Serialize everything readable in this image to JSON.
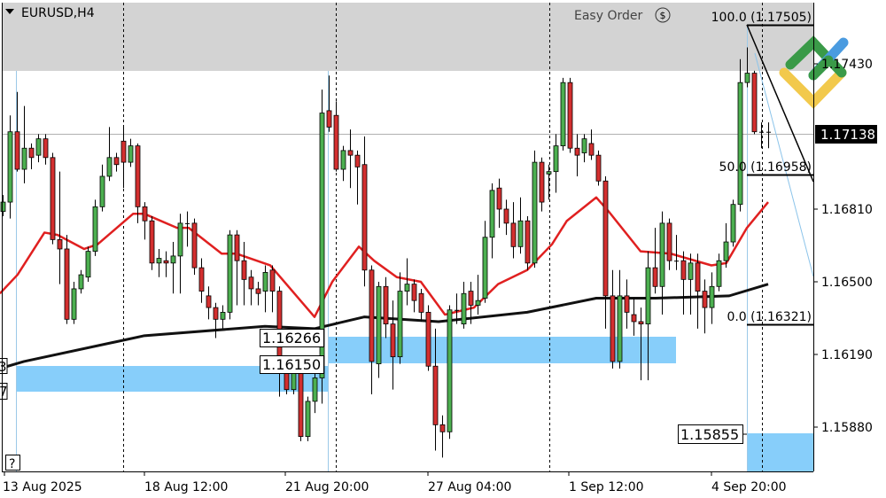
{
  "chart_header": {
    "symbol_label": "EURUSD,H4",
    "menu_icon": "triangle-down-icon"
  },
  "price_axis": {
    "ticks": [
      "1.17430",
      "1.16810",
      "1.16500",
      "1.16190",
      "1.15880"
    ],
    "tick_values": [
      1.1743,
      1.1681,
      1.165,
      1.1619,
      1.1588
    ],
    "current_price": "1.17138",
    "current_price_value": 1.17138
  },
  "time_axis": {
    "labels": [
      "13 Aug 2025",
      "18 Aug 12:00",
      "21 Aug 20:00",
      "27 Aug 04:00",
      "1 Sep 12:00",
      "4 Sep 20:00"
    ]
  },
  "levels": {
    "level_a": "1.16266",
    "level_b": "1.16150",
    "level_c": "1.15855",
    "left_cut_a": "3",
    "left_cut_b": "7"
  },
  "fibonacci": {
    "f100": "100.0 (1.17505)",
    "f50": "50.0 (1.16958)",
    "f0": "0.0 (1.16321)",
    "p100": 1.17505,
    "p50": 1.16958,
    "p0": 1.16321
  },
  "easy_order": {
    "label": "Easy Order",
    "icon": "dollar-circle-icon"
  },
  "help_button": "?",
  "colors": {
    "bull": "#4caf50",
    "bear": "#d32f2f",
    "ma_fast": "#e02020",
    "ma_slow": "#111111",
    "zone": "#87cefa",
    "gray_zone": "#d3d3d3"
  },
  "chart_data": {
    "type": "candlestick",
    "ohlc": [
      [
        1.168,
        1.1687,
        1.1678,
        1.1684
      ],
      [
        1.1684,
        1.1721,
        1.1677,
        1.1714
      ],
      [
        1.1714,
        1.1731,
        1.1697,
        1.1698
      ],
      [
        1.1698,
        1.1725,
        1.1692,
        1.1707
      ],
      [
        1.1707,
        1.1709,
        1.1698,
        1.1703
      ],
      [
        1.1704,
        1.1713,
        1.1701,
        1.1711
      ],
      [
        1.1711,
        1.1713,
        1.17,
        1.1703
      ],
      [
        1.1703,
        1.1705,
        1.1666,
        1.1668
      ],
      [
        1.1668,
        1.1697,
        1.1649,
        1.1664
      ],
      [
        1.1664,
        1.167,
        1.1632,
        1.1634
      ],
      [
        1.1634,
        1.165,
        1.1632,
        1.1647
      ],
      [
        1.1647,
        1.1655,
        1.1645,
        1.1653
      ],
      [
        1.1652,
        1.1665,
        1.165,
        1.1663
      ],
      [
        1.1663,
        1.1685,
        1.1661,
        1.1682
      ],
      [
        1.1682,
        1.17,
        1.168,
        1.1695
      ],
      [
        1.1695,
        1.1716,
        1.1693,
        1.1703
      ],
      [
        1.1703,
        1.1705,
        1.1697,
        1.17
      ],
      [
        1.171,
        1.1716,
        1.169,
        1.1701
      ],
      [
        1.1701,
        1.1711,
        1.1699,
        1.1708
      ],
      [
        1.1708,
        1.1709,
        1.1675,
        1.1682
      ],
      [
        1.1682,
        1.1684,
        1.1668,
        1.1676
      ],
      [
        1.1676,
        1.1678,
        1.1655,
        1.1658
      ],
      [
        1.1658,
        1.1664,
        1.1652,
        1.166
      ],
      [
        1.1659,
        1.1663,
        1.1652,
        1.1658
      ],
      [
        1.1658,
        1.1667,
        1.1645,
        1.1661
      ],
      [
        1.1661,
        1.1679,
        1.1645,
        1.1675
      ],
      [
        1.1675,
        1.168,
        1.1665,
        1.1675
      ],
      [
        1.1675,
        1.1677,
        1.1653,
        1.1656
      ],
      [
        1.1656,
        1.166,
        1.1641,
        1.1646
      ],
      [
        1.1644,
        1.1648,
        1.1634,
        1.1639
      ],
      [
        1.1639,
        1.1641,
        1.1626,
        1.1634
      ],
      [
        1.1634,
        1.164,
        1.163,
        1.1637
      ],
      [
        1.1637,
        1.1672,
        1.1634,
        1.167
      ],
      [
        1.167,
        1.1672,
        1.164,
        1.1659
      ],
      [
        1.1659,
        1.1667,
        1.164,
        1.1651
      ],
      [
        1.1652,
        1.1655,
        1.164,
        1.1647
      ],
      [
        1.1647,
        1.165,
        1.164,
        1.1645
      ],
      [
        1.1646,
        1.1657,
        1.1637,
        1.1654
      ],
      [
        1.1655,
        1.1657,
        1.1637,
        1.1646
      ],
      [
        1.1646,
        1.1648,
        1.1601,
        1.1612
      ],
      [
        1.1612,
        1.1616,
        1.1602,
        1.1604
      ],
      [
        1.1604,
        1.1617,
        1.1602,
        1.1615
      ],
      [
        1.1615,
        1.1617,
        1.1582,
        1.1584
      ],
      [
        1.1584,
        1.1601,
        1.1582,
        1.1599
      ],
      [
        1.1599,
        1.1611,
        1.1594,
        1.1609
      ],
      [
        1.1609,
        1.1732,
        1.1598,
        1.1722
      ],
      [
        1.1723,
        1.1738,
        1.1714,
        1.1716
      ],
      [
        1.1721,
        1.1727,
        1.1697,
        1.1698
      ],
      [
        1.1698,
        1.1708,
        1.1693,
        1.1706
      ],
      [
        1.1706,
        1.1715,
        1.169,
        1.1704
      ],
      [
        1.1704,
        1.1706,
        1.1683,
        1.1699
      ],
      [
        1.17,
        1.1712,
        1.1648,
        1.1655
      ],
      [
        1.1655,
        1.1657,
        1.1602,
        1.1616
      ],
      [
        1.1615,
        1.165,
        1.1609,
        1.1648
      ],
      [
        1.1648,
        1.1652,
        1.1626,
        1.1632
      ],
      [
        1.1632,
        1.1642,
        1.1604,
        1.1618
      ],
      [
        1.1618,
        1.1654,
        1.1615,
        1.1646
      ],
      [
        1.1646,
        1.166,
        1.164,
        1.1649
      ],
      [
        1.1649,
        1.1651,
        1.1637,
        1.1642
      ],
      [
        1.1645,
        1.1647,
        1.1633,
        1.1637
      ],
      [
        1.1637,
        1.164,
        1.1612,
        1.1614
      ],
      [
        1.1614,
        1.163,
        1.1578,
        1.1589
      ],
      [
        1.1589,
        1.1593,
        1.1575,
        1.1586
      ],
      [
        1.1586,
        1.164,
        1.1583,
        1.1638
      ],
      [
        1.1638,
        1.1645,
        1.1632,
        1.1638
      ],
      [
        1.1632,
        1.165,
        1.163,
        1.1645
      ],
      [
        1.1646,
        1.165,
        1.1632,
        1.164
      ],
      [
        1.164,
        1.1653,
        1.1636,
        1.1642
      ],
      [
        1.1643,
        1.1676,
        1.1641,
        1.1669
      ],
      [
        1.1669,
        1.1692,
        1.166,
        1.1689
      ],
      [
        1.169,
        1.1694,
        1.1673,
        1.1681
      ],
      [
        1.1681,
        1.1685,
        1.167,
        1.1675
      ],
      [
        1.1675,
        1.1684,
        1.166,
        1.1665
      ],
      [
        1.1665,
        1.1686,
        1.1662,
        1.1676
      ],
      [
        1.1676,
        1.1678,
        1.1655,
        1.1658
      ],
      [
        1.1658,
        1.1706,
        1.1656,
        1.1701
      ],
      [
        1.1701,
        1.1703,
        1.168,
        1.1684
      ],
      [
        1.1696,
        1.17,
        1.1685,
        1.1697
      ],
      [
        1.1697,
        1.1713,
        1.1688,
        1.1708
      ],
      [
        1.1708,
        1.1737,
        1.1706,
        1.1735
      ],
      [
        1.1735,
        1.1737,
        1.1705,
        1.1707
      ],
      [
        1.1707,
        1.1713,
        1.1695,
        1.1704
      ],
      [
        1.1705,
        1.1713,
        1.1701,
        1.1711
      ],
      [
        1.1709,
        1.1715,
        1.1702,
        1.1704
      ],
      [
        1.1704,
        1.1706,
        1.1691,
        1.1693
      ],
      [
        1.1693,
        1.1695,
        1.163,
        1.1644
      ],
      [
        1.1644,
        1.1655,
        1.1613,
        1.1616
      ],
      [
        1.1616,
        1.1655,
        1.1613,
        1.1644
      ],
      [
        1.1644,
        1.1651,
        1.163,
        1.1637
      ],
      [
        1.1636,
        1.1643,
        1.1627,
        1.1633
      ],
      [
        1.1633,
        1.1639,
        1.1608,
        1.1632
      ],
      [
        1.1632,
        1.1663,
        1.1608,
        1.1656
      ],
      [
        1.1656,
        1.1673,
        1.1645,
        1.1648
      ],
      [
        1.1648,
        1.168,
        1.1636,
        1.1675
      ],
      [
        1.1675,
        1.1677,
        1.1655,
        1.1659
      ],
      [
        1.1659,
        1.167,
        1.1655,
        1.1659
      ],
      [
        1.1659,
        1.1663,
        1.1636,
        1.1651
      ],
      [
        1.1651,
        1.1662,
        1.1636,
        1.1658
      ],
      [
        1.1658,
        1.1662,
        1.163,
        1.1646
      ],
      [
        1.1646,
        1.1651,
        1.1628,
        1.1639
      ],
      [
        1.1639,
        1.1654,
        1.1632,
        1.1648
      ],
      [
        1.1648,
        1.1662,
        1.1646,
        1.1659
      ],
      [
        1.1659,
        1.1675,
        1.1656,
        1.1667
      ],
      [
        1.1667,
        1.1685,
        1.1665,
        1.1683
      ],
      [
        1.1683,
        1.1745,
        1.168,
        1.1735
      ],
      [
        1.1735,
        1.175,
        1.1733,
        1.1739
      ],
      [
        1.1739,
        1.174,
        1.1713,
        1.1714
      ],
      [
        1.1714,
        1.1718,
        1.1707,
        1.1714
      ],
      [
        1.1714,
        1.1718,
        1.1707,
        1.1714
      ]
    ],
    "ma_fast": [
      [
        -0.4,
        1.1645
      ],
      [
        2.1,
        1.1653
      ],
      [
        5.9,
        1.1671
      ],
      [
        7.75,
        1.167
      ],
      [
        11.5,
        1.1664
      ],
      [
        13.4,
        1.1666
      ],
      [
        18.4,
        1.1679
      ],
      [
        20,
        1.1679
      ],
      [
        24.6,
        1.1673
      ],
      [
        26.25,
        1.1673
      ],
      [
        30.9,
        1.1662
      ],
      [
        33,
        1.1662
      ],
      [
        37.75,
        1.1657
      ],
      [
        44,
        1.1635
      ],
      [
        46.5,
        1.165
      ],
      [
        50.25,
        1.1665
      ],
      [
        52.4,
        1.1659
      ],
      [
        55.6,
        1.1652
      ],
      [
        59,
        1.165
      ],
      [
        62.4,
        1.1636
      ],
      [
        66.5,
        1.1639
      ],
      [
        69.9,
        1.1649
      ],
      [
        74,
        1.1655
      ],
      [
        77.5,
        1.1666
      ],
      [
        79.6,
        1.1676
      ],
      [
        83.75,
        1.1686
      ],
      [
        85.5,
        1.168
      ],
      [
        90,
        1.1663
      ],
      [
        94.25,
        1.1662
      ],
      [
        100,
        1.1657
      ],
      [
        102.1,
        1.1658
      ],
      [
        105,
        1.1673
      ],
      [
        108,
        1.1684
      ]
    ],
    "ma_slow": [
      [
        -0.4,
        1.1613
      ],
      [
        3,
        1.1616
      ],
      [
        20,
        1.1627
      ],
      [
        37,
        1.1631
      ],
      [
        44,
        1.163
      ],
      [
        51,
        1.1635
      ],
      [
        61.5,
        1.1633
      ],
      [
        74,
        1.1637
      ],
      [
        83.75,
        1.1643
      ],
      [
        92.1,
        1.1643
      ],
      [
        102.5,
        1.1644
      ],
      [
        108,
        1.1649
      ]
    ]
  }
}
